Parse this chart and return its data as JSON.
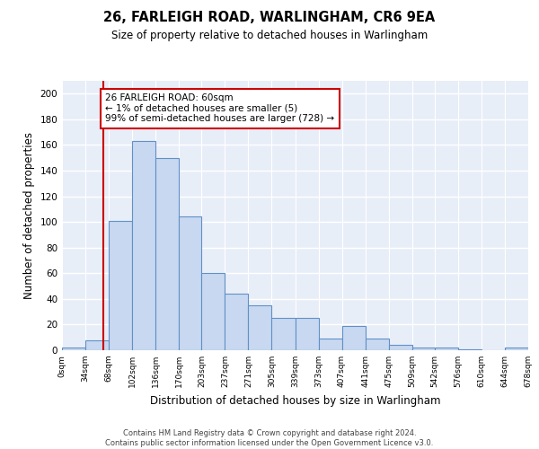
{
  "title": "26, FARLEIGH ROAD, WARLINGHAM, CR6 9EA",
  "subtitle": "Size of property relative to detached houses in Warlingham",
  "xlabel": "Distribution of detached houses by size in Warlingham",
  "ylabel": "Number of detached properties",
  "bar_color": "#c8d8f0",
  "bar_edge_color": "#6090c8",
  "background_color": "#e8eef8",
  "grid_color": "#ffffff",
  "bin_edges": [
    0,
    34,
    68,
    102,
    136,
    170,
    203,
    237,
    271,
    305,
    339,
    373,
    407,
    441,
    475,
    509,
    542,
    576,
    610,
    644,
    678
  ],
  "bar_heights": [
    2,
    8,
    101,
    163,
    150,
    104,
    60,
    44,
    35,
    25,
    25,
    9,
    19,
    9,
    4,
    2,
    2,
    1,
    0,
    2
  ],
  "tick_labels": [
    "0sqm",
    "34sqm",
    "68sqm",
    "102sqm",
    "136sqm",
    "170sqm",
    "203sqm",
    "237sqm",
    "271sqm",
    "305sqm",
    "339sqm",
    "373sqm",
    "407sqm",
    "441sqm",
    "475sqm",
    "509sqm",
    "542sqm",
    "576sqm",
    "610sqm",
    "644sqm",
    "678sqm"
  ],
  "ylim": [
    0,
    210
  ],
  "property_line_x": 60,
  "annotation_text": "26 FARLEIGH ROAD: 60sqm\n← 1% of detached houses are smaller (5)\n99% of semi-detached houses are larger (728) →",
  "annotation_box_color": "#ffffff",
  "annotation_box_edge": "#cc0000",
  "red_line_color": "#cc0000",
  "footer_text": "Contains HM Land Registry data © Crown copyright and database right 2024.\nContains public sector information licensed under the Open Government Licence v3.0.",
  "yticks": [
    0,
    20,
    40,
    60,
    80,
    100,
    120,
    140,
    160,
    180,
    200
  ]
}
